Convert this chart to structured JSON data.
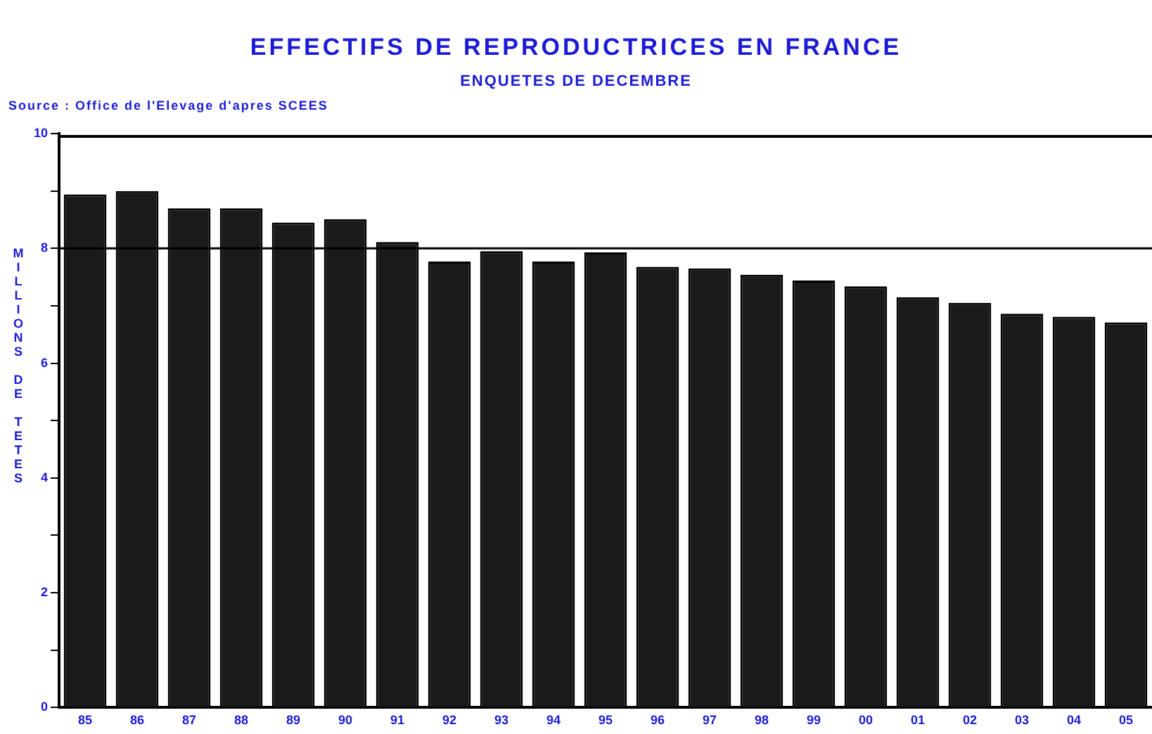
{
  "chart_data": {
    "type": "bar",
    "title": "EFFECTIFS DE REPRODUCTRICES EN FRANCE",
    "subtitle": "ENQUETES DE DECEMBRE",
    "annotations": [
      "Source : Office de l'Elevage d'apres SCEES"
    ],
    "ylabel": "MILLIONS DE TETES",
    "categories": [
      "85",
      "86",
      "87",
      "88",
      "89",
      "90",
      "91",
      "92",
      "93",
      "94",
      "95",
      "96",
      "97",
      "98",
      "99",
      "00",
      "01",
      "02",
      "03",
      "04",
      "05"
    ],
    "values": [
      8.94,
      9.0,
      8.7,
      8.7,
      8.45,
      8.51,
      8.11,
      7.77,
      7.95,
      7.77,
      7.93,
      7.68,
      7.65,
      7.54,
      7.44,
      7.34,
      7.15,
      7.05,
      6.86,
      6.81,
      6.71
    ],
    "color": "#1a1a1a",
    "ylim": [
      0,
      10
    ],
    "yticks": [
      0,
      {
        "value": 1,
        "label": null
      },
      2,
      {
        "value": 3,
        "label": null
      },
      4,
      {
        "value": 5,
        "label": null
      },
      6,
      {
        "value": 7,
        "label": null
      },
      8,
      {
        "value": 9,
        "label": null
      },
      10
    ],
    "ref_lines": [
      {
        "axis": "y",
        "value": 8,
        "color": "#000000"
      }
    ],
    "grid": false,
    "legend": false
  }
}
